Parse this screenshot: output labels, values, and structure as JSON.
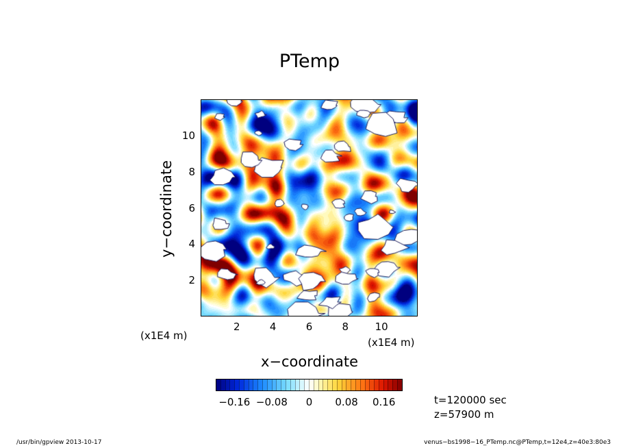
{
  "chart_data": {
    "type": "heatmap",
    "title": "PTemp",
    "xlabel": "x−coordinate",
    "ylabel": "y−coordinate",
    "x_multiplier": "(x1E4 m)",
    "y_multiplier": "(x1E4 m)",
    "xlim": [
      0,
      12
    ],
    "ylim": [
      0,
      12
    ],
    "xticks": [
      "2",
      "4",
      "6",
      "8",
      "10"
    ],
    "yticks": [
      "2",
      "4",
      "6",
      "8",
      "10"
    ],
    "colorbar": {
      "range": [
        -0.2,
        0.2
      ],
      "tick_labels": [
        "−0.16",
        "−0.08",
        "0",
        "0.08",
        "0.16"
      ],
      "tick_values": [
        -0.16,
        -0.08,
        0,
        0.08,
        0.16
      ],
      "levels": 40
    },
    "annotations": {
      "time": "t=120000 sec",
      "level": "z=57900 m"
    },
    "undefined_regions": "white patches with dark outlines"
  },
  "footer": {
    "left": "/usr/bin/gpview   2013-10-17",
    "right": "venus−bs1998−16_PTemp.nc@PTemp,t=12e4,z=40e3:80e3"
  },
  "colors": {
    "low": "#00007f",
    "mid": "#ffffff",
    "high": "#7f0000"
  }
}
